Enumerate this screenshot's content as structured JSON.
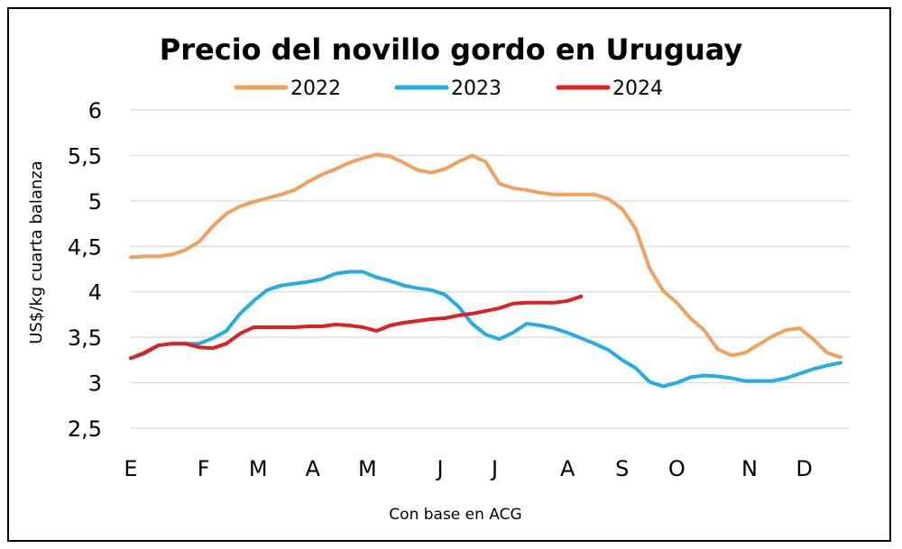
{
  "chart_data": {
    "type": "line",
    "title": "Precio del novillo gordo en Uruguay",
    "ylabel": "US$/kg cuarta balanza",
    "xlabel": "",
    "note": "Con base en ACG",
    "ylim": [
      2.5,
      6
    ],
    "yticks": [
      "2,5",
      "3",
      "3,5",
      "4",
      "4,5",
      "5",
      "5,5",
      "6"
    ],
    "ytick_values": [
      2.5,
      3,
      3.5,
      4,
      4.5,
      5,
      5.5,
      6
    ],
    "months": [
      "E",
      "F",
      "M",
      "A",
      "M",
      "J",
      "J",
      "A",
      "S",
      "O",
      "N",
      "D"
    ],
    "month_weeks": [
      0,
      8,
      14,
      20,
      26,
      34,
      40,
      48,
      54,
      60,
      68,
      74
    ],
    "x_max_week": 79,
    "grid": true,
    "legend_position": "top",
    "series": [
      {
        "name": "2022",
        "color": "#F0A15E",
        "values": [
          4.38,
          4.39,
          4.39,
          4.41,
          4.46,
          4.55,
          4.72,
          4.86,
          4.94,
          4.99,
          5.03,
          5.07,
          5.12,
          5.21,
          5.29,
          5.35,
          5.42,
          5.47,
          5.51,
          5.49,
          5.42,
          5.34,
          5.31,
          5.35,
          5.43,
          5.5,
          5.43,
          5.19,
          5.14,
          5.12,
          5.09,
          5.07,
          5.07,
          5.07,
          5.07,
          5.02,
          4.91,
          4.69,
          4.26,
          4.01,
          3.88,
          3.71,
          3.58,
          3.37,
          3.3,
          3.33,
          3.42,
          3.51,
          3.58,
          3.6,
          3.48,
          3.33,
          3.28
        ]
      },
      {
        "name": "2023",
        "color": "#21AEE4",
        "values": [
          3.27,
          3.32,
          3.41,
          3.43,
          3.43,
          3.43,
          3.49,
          3.57,
          3.76,
          3.9,
          4.02,
          4.07,
          4.09,
          4.11,
          4.14,
          4.2,
          4.22,
          4.22,
          4.16,
          4.12,
          4.07,
          4.04,
          4.02,
          3.97,
          3.84,
          3.65,
          3.53,
          3.48,
          3.55,
          3.65,
          3.63,
          3.6,
          3.55,
          3.49,
          3.43,
          3.36,
          3.25,
          3.16,
          3.01,
          2.96,
          3.0,
          3.06,
          3.08,
          3.07,
          3.05,
          3.02,
          3.02,
          3.02,
          3.05,
          3.1,
          3.15,
          3.19,
          3.22
        ]
      },
      {
        "name": "2024",
        "color": "#E02020",
        "values": [
          3.27,
          3.33,
          3.41,
          3.43,
          3.43,
          3.39,
          3.38,
          3.43,
          3.54,
          3.61,
          3.61,
          3.61,
          3.61,
          3.62,
          3.62,
          3.64,
          3.63,
          3.61,
          3.57,
          3.63,
          3.66,
          3.68,
          3.7,
          3.71,
          3.74,
          3.76,
          3.79,
          3.82,
          3.87,
          3.88,
          3.88,
          3.88,
          3.9,
          3.95
        ]
      }
    ]
  }
}
